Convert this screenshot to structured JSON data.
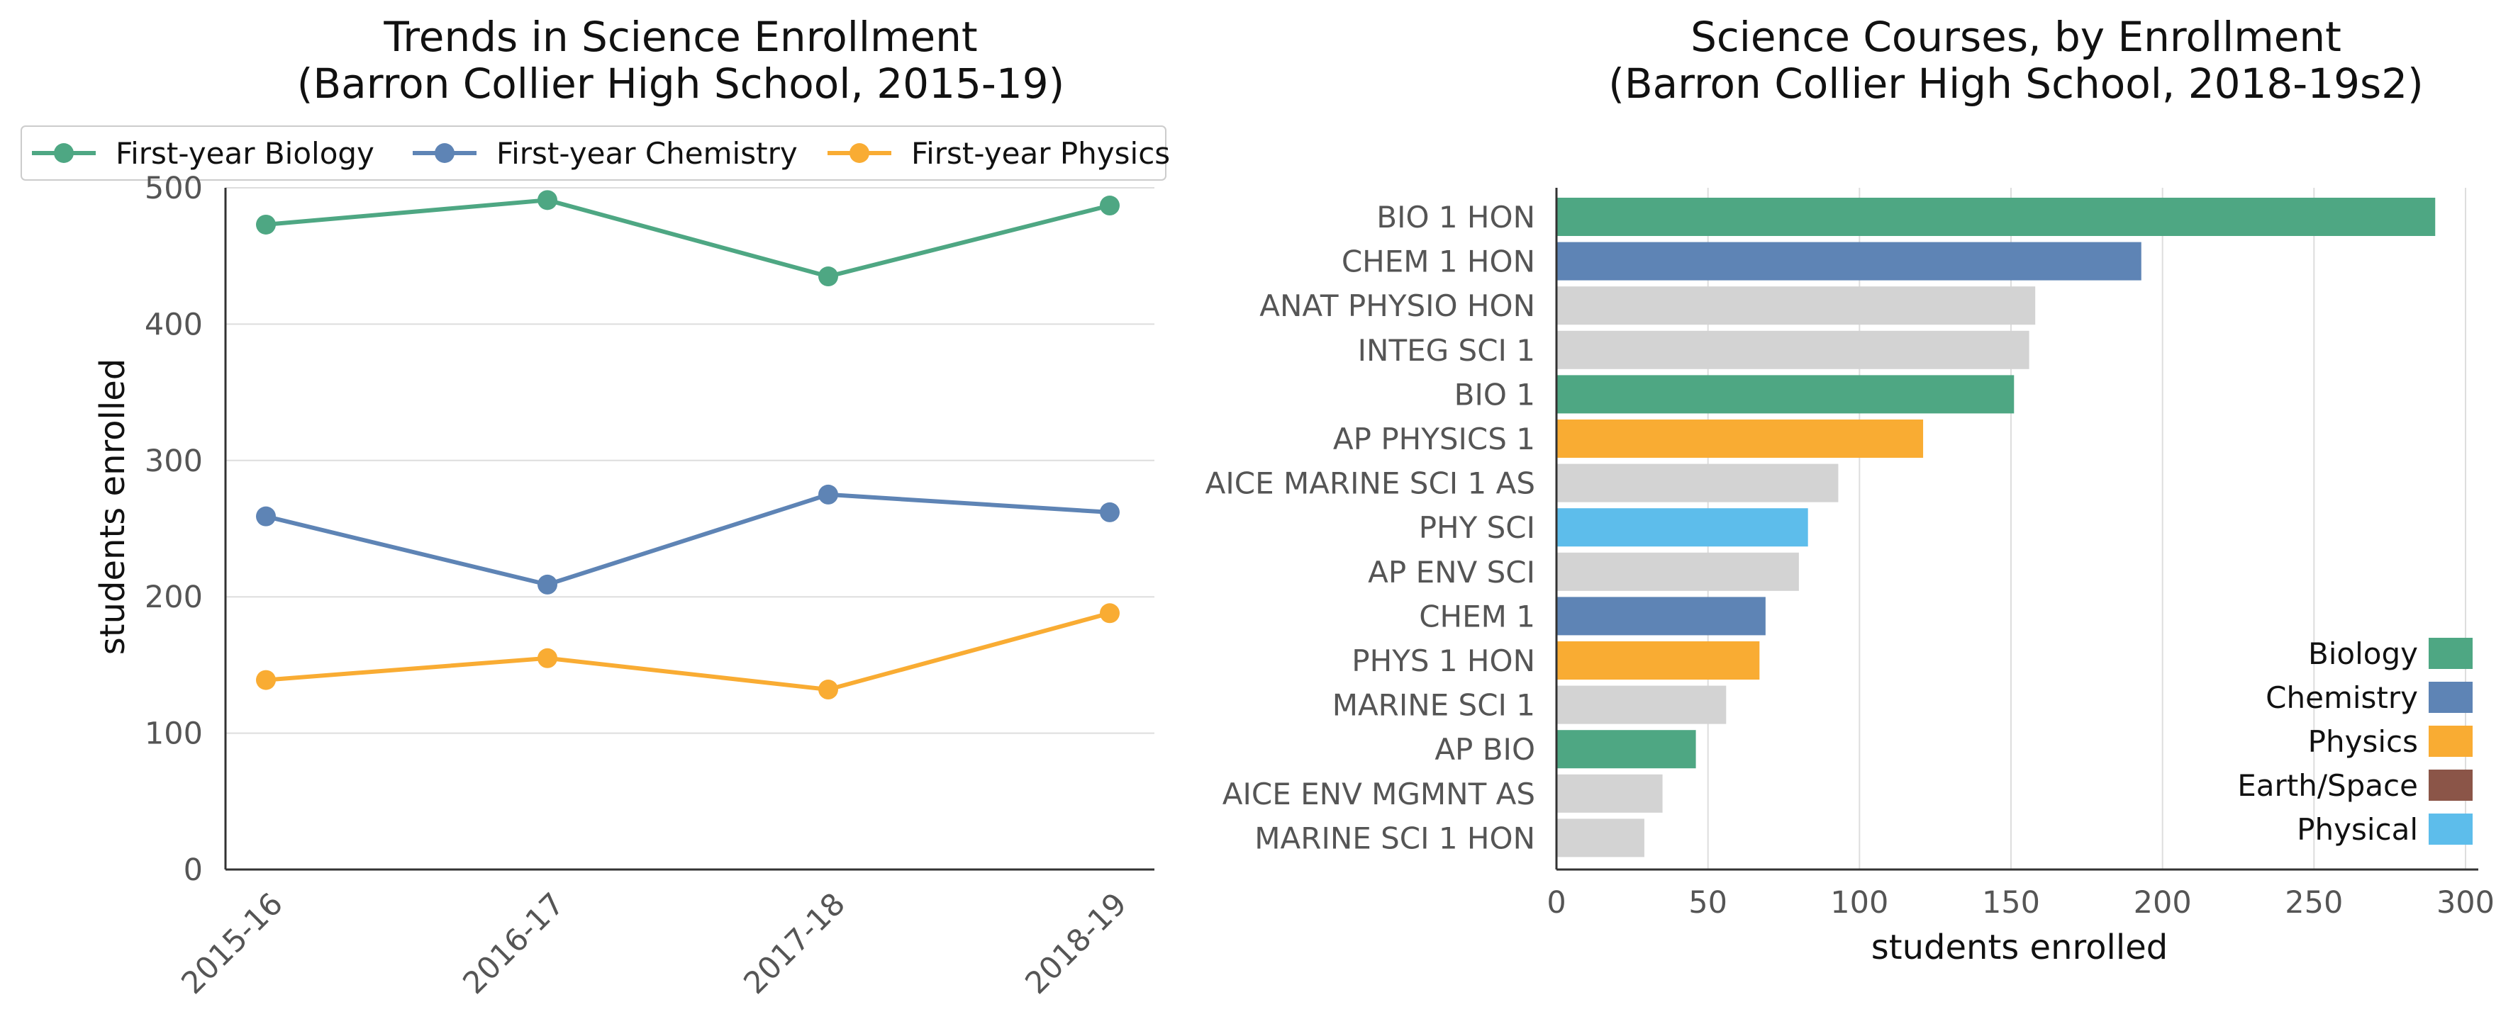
{
  "chart_data": [
    {
      "type": "line",
      "title": [
        "Trends in Science Enrollment",
        "(Barron Collier High School, 2015-19)"
      ],
      "xlabel": "",
      "ylabel": "students enrolled",
      "categories": [
        "2015-16",
        "2016-17",
        "2017-18",
        "2018-19"
      ],
      "ylim": [
        0,
        500
      ],
      "yticks": [
        "0",
        "100",
        "200",
        "300",
        "400",
        "500"
      ],
      "grid": "horizontal",
      "legend": "top",
      "series": [
        {
          "name": "First-year Biology",
          "color": "#4ea783",
          "values": [
            473,
            491,
            435,
            487
          ]
        },
        {
          "name": "First-year Chemistry",
          "color": "#5e84b5",
          "values": [
            259,
            209,
            275,
            262
          ]
        },
        {
          "name": "First-year Physics",
          "color": "#f9ac33",
          "values": [
            139,
            155,
            132,
            188
          ]
        }
      ]
    },
    {
      "type": "bar",
      "orientation": "horizontal",
      "title": [
        "Science Courses, by Enrollment",
        "(Barron Collier High School, 2018-19s2)"
      ],
      "xlabel": "students enrolled",
      "ylabel": "",
      "xlim": [
        0,
        300
      ],
      "xticks": [
        "0",
        "50",
        "100",
        "150",
        "200",
        "250",
        "300"
      ],
      "grid": "vertical",
      "legend": "lower-right",
      "categories": [
        "BIO 1 HON",
        "CHEM 1 HON",
        "ANAT PHYSIO HON",
        "INTEG SCI 1",
        "BIO 1",
        "AP PHYSICS 1",
        "AICE MARINE SCI 1 AS",
        "PHY SCI",
        "AP ENV SCI",
        "CHEM 1",
        "PHYS 1 HON",
        "MARINE SCI 1",
        "AP BIO",
        "AICE ENV MGMNT AS",
        "MARINE SCI 1 HON"
      ],
      "values": [
        290,
        193,
        158,
        156,
        151,
        121,
        93,
        83,
        80,
        69,
        67,
        56,
        46,
        35,
        29
      ],
      "groups": [
        "Biology",
        "Chemistry",
        "Other",
        "Other",
        "Biology",
        "Physics",
        "Other",
        "Physical",
        "Other",
        "Chemistry",
        "Physics",
        "Other",
        "Biology",
        "Other",
        "Other"
      ],
      "legend_entries": [
        {
          "name": "Biology",
          "color": "#4ea783"
        },
        {
          "name": "Chemistry",
          "color": "#5e84b5"
        },
        {
          "name": "Physics",
          "color": "#f9ac33"
        },
        {
          "name": "Earth/Space",
          "color": "#8b5548"
        },
        {
          "name": "Physical",
          "color": "#5dbdeb"
        }
      ],
      "other_color": "#d3d3d3"
    }
  ]
}
